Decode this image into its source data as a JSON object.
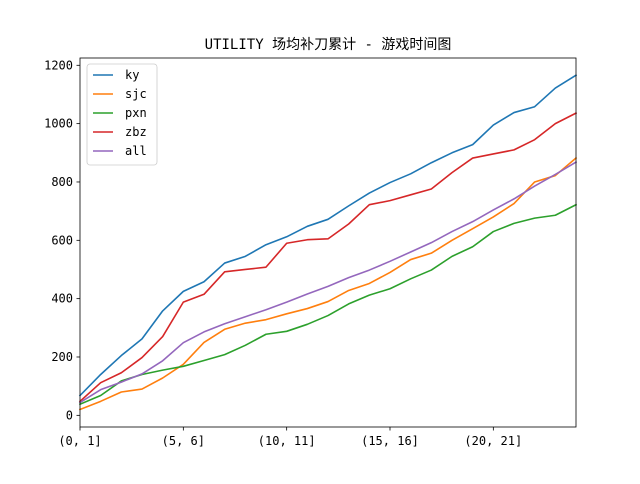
{
  "chart_data": {
    "type": "line",
    "title": "UTILITY 场均补刀累计 - 游戏时间图",
    "xlabel": "",
    "ylabel": "",
    "x_tick_labels": [
      {
        "index": 0,
        "label": "(0, 1]"
      },
      {
        "index": 5,
        "label": "(5, 6]"
      },
      {
        "index": 10,
        "label": "(10, 11]"
      },
      {
        "index": 15,
        "label": "(15, 16]"
      },
      {
        "index": 20,
        "label": "(20, 21]"
      }
    ],
    "xlim": [
      0,
      24
    ],
    "ylim": [
      -40,
      1225
    ],
    "yticks": [
      0,
      200,
      400,
      600,
      800,
      1000,
      1200
    ],
    "grid": false,
    "legend_position": "upper-left",
    "series": [
      {
        "name": "ky",
        "color": "#1f77b4",
        "values": [
          68,
          140,
          205,
          262,
          358,
          425,
          458,
          522,
          545,
          585,
          612,
          648,
          672,
          718,
          762,
          798,
          828,
          866,
          900,
          928,
          995,
          1038,
          1058,
          1122,
          1166
        ]
      },
      {
        "name": "sjc",
        "color": "#ff7f0e",
        "values": [
          20,
          48,
          80,
          90,
          128,
          175,
          250,
          295,
          316,
          328,
          348,
          366,
          390,
          428,
          452,
          490,
          534,
          556,
          600,
          640,
          680,
          726,
          800,
          822,
          882
        ]
      },
      {
        "name": "pxn",
        "color": "#2ca02c",
        "values": [
          38,
          68,
          118,
          140,
          155,
          168,
          188,
          208,
          240,
          278,
          288,
          312,
          342,
          382,
          412,
          434,
          468,
          498,
          545,
          578,
          630,
          658,
          676,
          686,
          722
        ]
      },
      {
        "name": "zbz",
        "color": "#d62728",
        "values": [
          48,
          112,
          146,
          198,
          270,
          388,
          415,
          492,
          500,
          508,
          590,
          602,
          605,
          656,
          722,
          736,
          756,
          776,
          832,
          882,
          896,
          910,
          945,
          1000,
          1036
        ]
      },
      {
        "name": "all",
        "color": "#9467bd",
        "values": [
          44,
          88,
          114,
          142,
          187,
          249,
          286,
          314,
          338,
          362,
          388,
          416,
          442,
          472,
          498,
          528,
          560,
          592,
          630,
          664,
          704,
          742,
          786,
          826,
          868
        ]
      }
    ]
  }
}
